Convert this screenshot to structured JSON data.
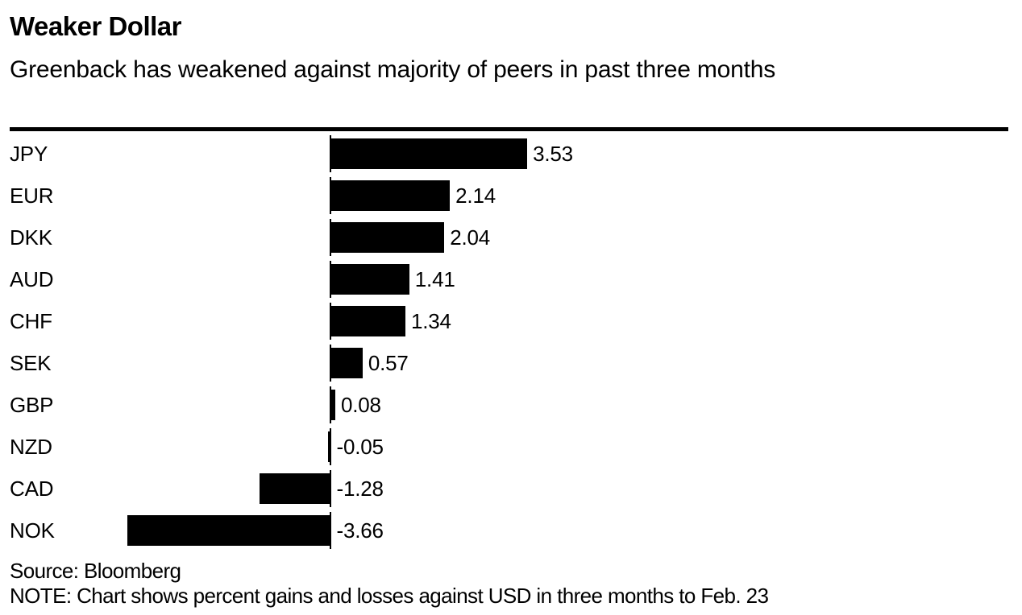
{
  "header": {
    "title": "Weaker Dollar",
    "subtitle": "Greenback has weakened against majority of peers in past three months"
  },
  "footer": {
    "source": "Source: Bloomberg",
    "note": "NOTE: Chart shows percent gains and losses against USD in three months to Feb. 23"
  },
  "colors": {
    "bar": "#000000",
    "text": "#000000",
    "background": "#ffffff"
  },
  "chart_data": {
    "type": "bar",
    "orientation": "horizontal",
    "title": "Weaker Dollar",
    "subtitle": "Greenback has weakened against majority of peers in past three months",
    "categories": [
      "JPY",
      "EUR",
      "DKK",
      "AUD",
      "CHF",
      "SEK",
      "GBP",
      "NZD",
      "CAD",
      "NOK"
    ],
    "values": [
      3.53,
      2.14,
      2.04,
      1.41,
      1.34,
      0.57,
      0.08,
      -0.05,
      -1.28,
      -3.66
    ],
    "value_labels": [
      "3.53",
      "2.14",
      "2.04",
      "1.41",
      "1.34",
      "0.57",
      "0.08",
      "-0.05",
      "-1.28",
      "-3.66"
    ],
    "xlabel": "",
    "ylabel": "",
    "xlim": [
      -3.9,
      4.2
    ],
    "unit": "percent change vs USD",
    "grid": false,
    "legend": false,
    "bar_color": "#000000",
    "baseline": 0
  }
}
